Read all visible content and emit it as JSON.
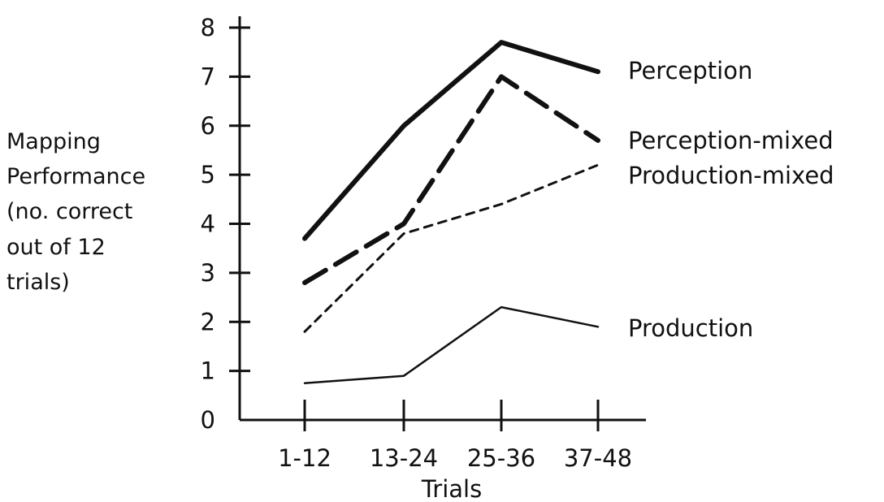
{
  "chart_data": {
    "type": "line",
    "categories": [
      "1-12",
      "13-24",
      "25-36",
      "37-48"
    ],
    "xlabel": "Trials",
    "ylabel_lines": [
      "Mapping",
      "Performance",
      "(no. correct",
      "out of 12",
      "trials)"
    ],
    "ylim": [
      0,
      8
    ],
    "yticks": [
      "0",
      "1",
      "2",
      "3",
      "4",
      "5",
      "6",
      "7",
      "8"
    ],
    "grid": false,
    "series": [
      {
        "name": "Perception",
        "values": [
          3.7,
          6.0,
          7.7,
          7.1
        ],
        "style": "thick-solid"
      },
      {
        "name": "Perception-mixed",
        "values": [
          2.8,
          4.0,
          7.0,
          5.7
        ],
        "style": "thick-dashed"
      },
      {
        "name": "Production-mixed",
        "values": [
          1.8,
          3.8,
          4.4,
          5.2
        ],
        "style": "thin-dashed"
      },
      {
        "name": "Production",
        "values": [
          0.75,
          0.9,
          2.3,
          1.9
        ],
        "style": "thin-solid"
      }
    ]
  }
}
